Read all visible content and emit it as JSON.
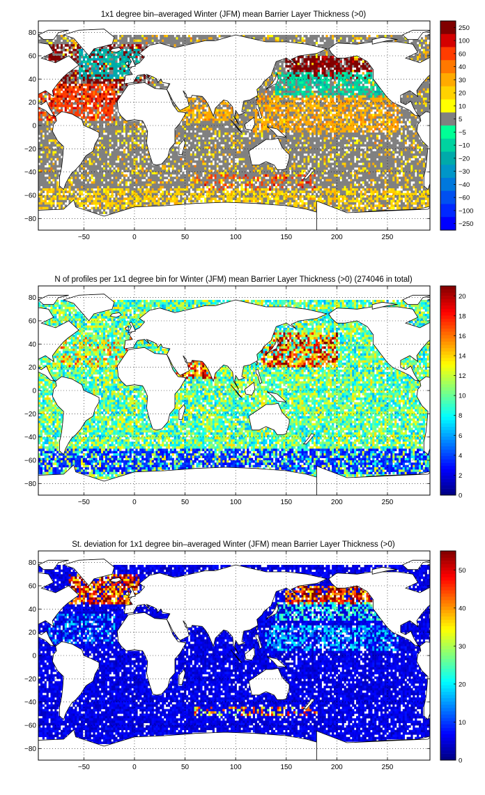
{
  "chart_data": [
    {
      "type": "heatmap",
      "title": "1x1 degree bin–averaged Winter (JFM) mean Barrier Layer Thickness (>0)",
      "xlim": [
        -95,
        292
      ],
      "ylim": [
        -90,
        90
      ],
      "xticks": [
        -50,
        0,
        50,
        100,
        150,
        200,
        250
      ],
      "yticks": [
        -80,
        -60,
        -40,
        -20,
        0,
        20,
        40,
        60,
        80
      ],
      "colorbar": {
        "scale": "categorical",
        "labels": [
          "250",
          "100",
          "60",
          "40",
          "30",
          "20",
          "10",
          "5",
          "−5",
          "−10",
          "−20",
          "−30",
          "−40",
          "−60",
          "−100",
          "−250"
        ],
        "colors": [
          "#800000",
          "#d40000",
          "#ff3c00",
          "#ff7800",
          "#ffaa00",
          "#ffd200",
          "#ffff00",
          "#808080",
          "#00ff96",
          "#00d2a0",
          "#00aaaa",
          "#0096c8",
          "#0078dc",
          "#0050f0",
          "#0028ff",
          "#0000ff"
        ]
      },
      "grid": true,
      "gridColor": "#000000",
      "landColor": "#ffffff",
      "regions": [
        {
          "lon": [
            -85,
            15
          ],
          "lat": [
            20,
            70
          ],
          "cat": 0,
          "weight": 0.6
        },
        {
          "lon": [
            -55,
            5
          ],
          "lat": [
            40,
            65
          ],
          "cat": 10,
          "weight": 0.7
        },
        {
          "lon": [
            -95,
            -20
          ],
          "lat": [
            5,
            35
          ],
          "cat": 2,
          "weight": 0.7
        },
        {
          "lon": [
            150,
            240
          ],
          "lat": [
            40,
            60
          ],
          "cat": 0,
          "weight": 0.8
        },
        {
          "lon": [
            140,
            260
          ],
          "lat": [
            25,
            45
          ],
          "cat": 9,
          "weight": 0.6
        },
        {
          "lon": [
            120,
            260
          ],
          "lat": [
            -5,
            25
          ],
          "cat": 4,
          "weight": 0.6
        },
        {
          "lon": [
            -95,
            290
          ],
          "lat": [
            -72,
            -55
          ],
          "cat": 5,
          "weight": 0.5
        },
        {
          "lon": [
            40,
            100
          ],
          "lat": [
            5,
            25
          ],
          "cat": 4,
          "weight": 0.6
        },
        {
          "lon": [
            60,
            180
          ],
          "lat": [
            -55,
            -42
          ],
          "cat": 2,
          "weight": 0.25
        }
      ]
    },
    {
      "type": "heatmap",
      "title": "N of profiles per 1x1 degree bin for Winter (JFM) mean Barrier Layer Thickness (>0) (274046 in total)",
      "xlim": [
        -95,
        292
      ],
      "ylim": [
        -90,
        90
      ],
      "xticks": [
        -50,
        0,
        50,
        100,
        150,
        200,
        250
      ],
      "yticks": [
        -80,
        -60,
        -40,
        -20,
        0,
        20,
        40,
        60,
        80
      ],
      "colorbar": {
        "scale": "continuous",
        "min": 0,
        "max": 21,
        "ticks": [
          0,
          2,
          4,
          6,
          8,
          10,
          12,
          14,
          16,
          18,
          20
        ],
        "colormap": "jet"
      },
      "grid": true,
      "gridColor": "#000000",
      "landColor": "#ffffff",
      "base": 6,
      "spread": 8,
      "regions": [
        {
          "lon": [
            125,
            200
          ],
          "lat": [
            20,
            50
          ],
          "value": 20,
          "weight": 0.7
        },
        {
          "lon": [
            -80,
            0
          ],
          "lat": [
            20,
            45
          ],
          "value": 16,
          "weight": 0.4
        },
        {
          "lon": [
            30,
            80
          ],
          "lat": [
            10,
            28
          ],
          "value": 20,
          "weight": 0.7
        },
        {
          "lon": [
            -95,
            290
          ],
          "lat": [
            -72,
            -50
          ],
          "value": 4,
          "weight": 0.6
        },
        {
          "lon": [
            120,
            290
          ],
          "lat": [
            -30,
            15
          ],
          "value": 12,
          "weight": 0.4
        }
      ]
    },
    {
      "type": "heatmap",
      "title": "St. deviation for 1x1 degree bin–averaged Winter (JFM) mean Barrier Layer Thickness (>0)",
      "xlim": [
        -95,
        292
      ],
      "ylim": [
        -90,
        90
      ],
      "xticks": [
        -50,
        0,
        50,
        100,
        150,
        200,
        250
      ],
      "yticks": [
        -80,
        -60,
        -40,
        -20,
        0,
        20,
        40,
        60,
        80
      ],
      "colorbar": {
        "scale": "continuous",
        "min": 0,
        "max": 55,
        "ticks": [
          0,
          10,
          20,
          30,
          40,
          50
        ],
        "colormap": "jet"
      },
      "grid": true,
      "gridColor": "#000000",
      "landColor": "#ffffff",
      "base": 3,
      "spread": 5,
      "regions": [
        {
          "lon": [
            -65,
            5
          ],
          "lat": [
            45,
            70
          ],
          "value": 55,
          "weight": 0.8
        },
        {
          "lon": [
            150,
            240
          ],
          "lat": [
            45,
            60
          ],
          "value": 55,
          "weight": 0.8
        },
        {
          "lon": [
            140,
            260
          ],
          "lat": [
            30,
            45
          ],
          "value": 25,
          "weight": 0.5
        },
        {
          "lon": [
            130,
            260
          ],
          "lat": [
            5,
            25
          ],
          "value": 20,
          "weight": 0.5
        },
        {
          "lon": [
            60,
            180
          ],
          "lat": [
            -52,
            -44
          ],
          "value": 45,
          "weight": 0.35
        },
        {
          "lon": [
            -85,
            -20
          ],
          "lat": [
            10,
            35
          ],
          "value": 18,
          "weight": 0.4
        }
      ]
    }
  ]
}
